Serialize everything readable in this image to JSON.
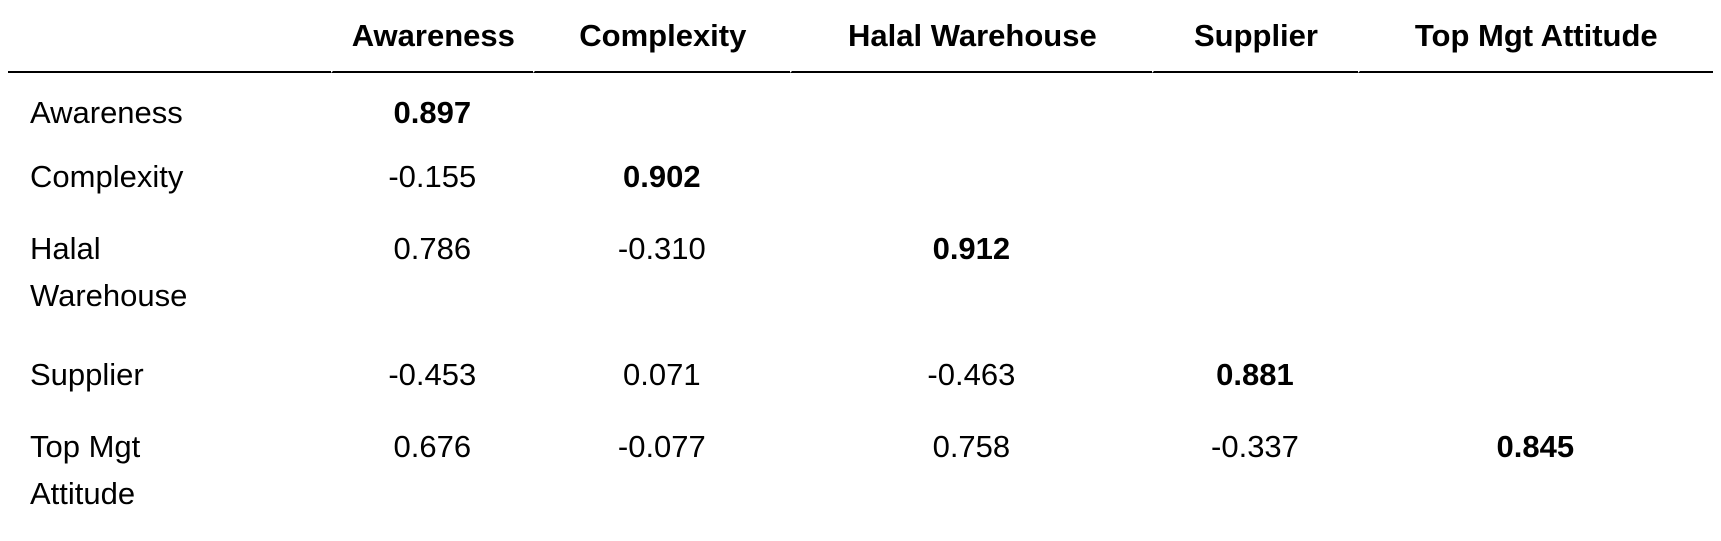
{
  "table": {
    "columns": [
      "",
      "Awareness",
      "Complexity",
      "Halal Warehouse",
      "Supplier",
      "Top Mgt Attitude"
    ],
    "rows": [
      {
        "label": "Awareness",
        "values": [
          "0.897",
          "",
          "",
          "",
          ""
        ]
      },
      {
        "label": "Complexity",
        "values": [
          "-0.155",
          "0.902",
          "",
          "",
          ""
        ]
      },
      {
        "label": "Halal Warehouse",
        "values": [
          "0.786",
          "-0.310",
          "0.912",
          "",
          ""
        ]
      },
      {
        "label": "Supplier",
        "values": [
          "-0.453",
          "0.071",
          "-0.463",
          "0.881",
          ""
        ]
      },
      {
        "label": "Top Mgt Attitude",
        "values": [
          "0.676",
          "-0.077",
          "0.758",
          "-0.337",
          "0.845"
        ]
      }
    ]
  }
}
